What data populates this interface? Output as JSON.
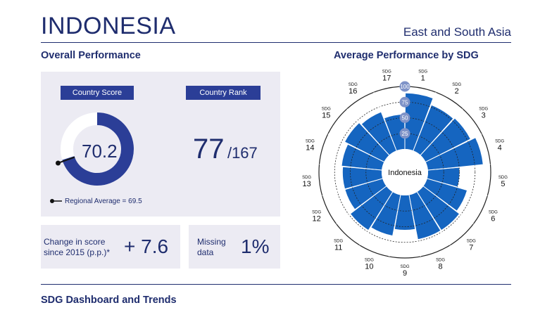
{
  "header": {
    "country": "INDONESIA",
    "region": "East and South Asia"
  },
  "overall": {
    "title": "Overall Performance",
    "score_tag": "Country Score",
    "score": "70.2",
    "score_value": 70.2,
    "regional_avg_label": "Regional Average = 69.5",
    "regional_avg_value": 69.5,
    "rank_tag": "Country Rank",
    "rank": "77",
    "rank_total": "/167",
    "change_label_line1": "Change in score",
    "change_label_line2": "since 2015 (p.p.)*",
    "change_value": "+ 7.6",
    "missing_label_line1": "Missing",
    "missing_label_line2": "data",
    "missing_value": "1%"
  },
  "sdg_chart": {
    "title": "Average Performance by SDG",
    "center_label": "Indonesia",
    "ring_labels": [
      "25",
      "50",
      "75",
      "100"
    ],
    "goal_prefix": "SDG"
  },
  "footer": {
    "title": "SDG Dashboard and Trends"
  },
  "colors": {
    "brand": "#1f2d6e",
    "accent": "#2b3e97",
    "bar": "#1565c0",
    "panel": "#ecebf3",
    "ring_fill": "#7f93c8"
  },
  "chart_data": {
    "type": "bar",
    "subtype": "polar",
    "title": "Average Performance by SDG",
    "categories": [
      "1",
      "2",
      "3",
      "4",
      "5",
      "6",
      "7",
      "8",
      "9",
      "10",
      "11",
      "12",
      "13",
      "14",
      "15",
      "16",
      "17"
    ],
    "values": [
      89,
      78,
      80,
      88,
      50,
      66,
      72,
      72,
      55,
      66,
      72,
      62,
      62,
      64,
      70,
      66,
      55
    ],
    "ylim": [
      0,
      100
    ],
    "grid": true
  }
}
